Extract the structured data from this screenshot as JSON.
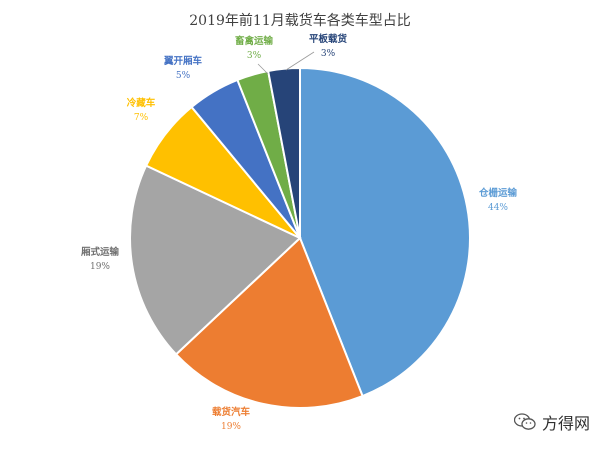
{
  "chart_data": {
    "type": "pie",
    "title": "2019年前11月载货车各类车型占比",
    "slices": [
      {
        "label": "仓栅运输",
        "value": 44,
        "pct_label": "44%",
        "color": "#5b9bd5"
      },
      {
        "label": "载货汽车",
        "value": 19,
        "pct_label": "19%",
        "color": "#ed7d31"
      },
      {
        "label": "厢式运输",
        "value": 19,
        "pct_label": "19%",
        "color": "#a5a5a5"
      },
      {
        "label": "冷藏车",
        "value": 7,
        "pct_label": "7%",
        "color": "#ffc000"
      },
      {
        "label": "翼开厢车",
        "value": 5,
        "pct_label": "5%",
        "color": "#4472c4"
      },
      {
        "label": "畜禽运输",
        "value": 3,
        "pct_label": "3%",
        "color": "#70ad47"
      },
      {
        "label": "平板载货",
        "value": 3,
        "pct_label": "3%",
        "color": "#264478"
      }
    ],
    "start_angle_deg": 0,
    "direction": "clockwise"
  },
  "watermark": {
    "text": "方得网",
    "icon": "wechat-icon"
  }
}
